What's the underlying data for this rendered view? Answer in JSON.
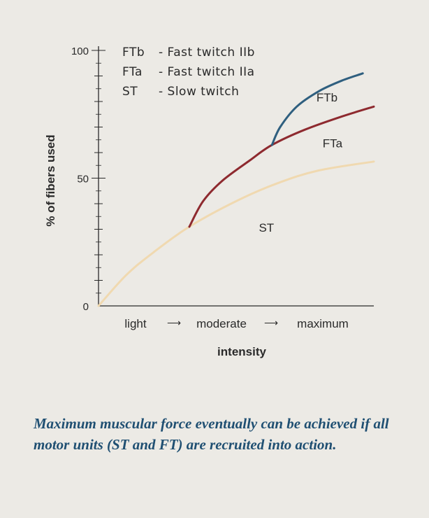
{
  "colors": {
    "ST": "#f0d9b0",
    "FTa": "#8e2a2f",
    "FTb": "#2f5f7f",
    "axis": "#2a2a2a",
    "caption": "#1f4f72"
  },
  "chart_data": {
    "type": "line",
    "title": "",
    "xlabel": "intensity",
    "ylabel": "% of fibers used",
    "ylim": [
      0,
      100
    ],
    "xlim": [
      0,
      100
    ],
    "yticks": [
      {
        "value": 0,
        "label": "0"
      },
      {
        "value": 50,
        "label": "50"
      },
      {
        "value": 100,
        "label": "100"
      }
    ],
    "x_scale_labels": [
      "light",
      "moderate",
      "maximum"
    ],
    "arrow_glyph": "⟶",
    "legend": [
      {
        "abbr": "FTb",
        "text": "- Fast twitch IIb"
      },
      {
        "abbr": "FTa",
        "text": "- Fast twitch IIa"
      },
      {
        "abbr": "ST",
        "text": "- Slow twitch"
      }
    ],
    "series": [
      {
        "name": "ST",
        "label": "ST",
        "label_at": [
          61,
          29
        ],
        "points": [
          [
            0,
            0
          ],
          [
            10,
            12
          ],
          [
            20,
            21
          ],
          [
            33,
            31
          ],
          [
            50,
            41
          ],
          [
            65,
            48
          ],
          [
            80,
            53
          ],
          [
            100,
            56.5
          ]
        ]
      },
      {
        "name": "FTa",
        "label": "FTa",
        "label_at": [
          85,
          62
        ],
        "points": [
          [
            33,
            31
          ],
          [
            38,
            41
          ],
          [
            45,
            49
          ],
          [
            55,
            57
          ],
          [
            63,
            63
          ],
          [
            75,
            69
          ],
          [
            88,
            74
          ],
          [
            100,
            78
          ]
        ]
      },
      {
        "name": "FTb",
        "label": "FTb",
        "label_at": [
          83,
          80
        ],
        "points": [
          [
            63,
            63
          ],
          [
            66,
            70
          ],
          [
            72,
            78
          ],
          [
            80,
            84
          ],
          [
            88,
            88
          ],
          [
            96,
            91
          ]
        ]
      }
    ]
  },
  "caption": "Maximum muscular force eventually can be achieved if all motor units (ST and FT) are recruited into action."
}
